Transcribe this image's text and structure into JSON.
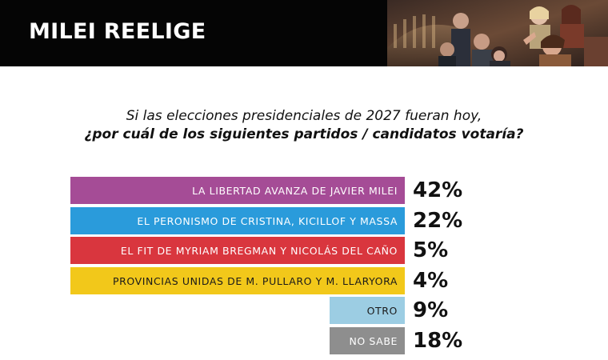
{
  "header": {
    "title": "MILEI REELIGE"
  },
  "question": {
    "line1": "Si las elecciones presidenciales de 2027 fueran hoy,",
    "line2": "¿por cuál de los siguientes partidos / candidatos votaría?"
  },
  "chart_data": {
    "type": "bar",
    "orientation": "horizontal",
    "title": "",
    "xlabel": "",
    "ylabel": "",
    "categories": [
      "LA LIBERTAD AVANZA DE JAVIER MILEI",
      "EL PERONISMO DE CRISTINA, KICILLOF Y MASSA",
      "EL FIT DE MYRIAM BREGMAN Y NICOLÁS DEL CAÑO",
      "PROVINCIAS UNIDAS DE M. PULLARO Y M. LLARYORA",
      "OTRO",
      "NO SABE"
    ],
    "values": [
      42,
      22,
      5,
      4,
      9,
      18
    ],
    "value_labels": [
      "42%",
      "22%",
      "5%",
      "4%",
      "9%",
      "18%"
    ],
    "colors": [
      "#a54c96",
      "#2a9bdb",
      "#d9363e",
      "#f2c81a",
      "#9ccde3",
      "#8e8e8e"
    ],
    "text_colors": [
      "#ffffff",
      "#ffffff",
      "#ffffff",
      "#1a1a1a",
      "#1a1a1a",
      "#ffffff"
    ],
    "grid": false,
    "legend": "none"
  }
}
